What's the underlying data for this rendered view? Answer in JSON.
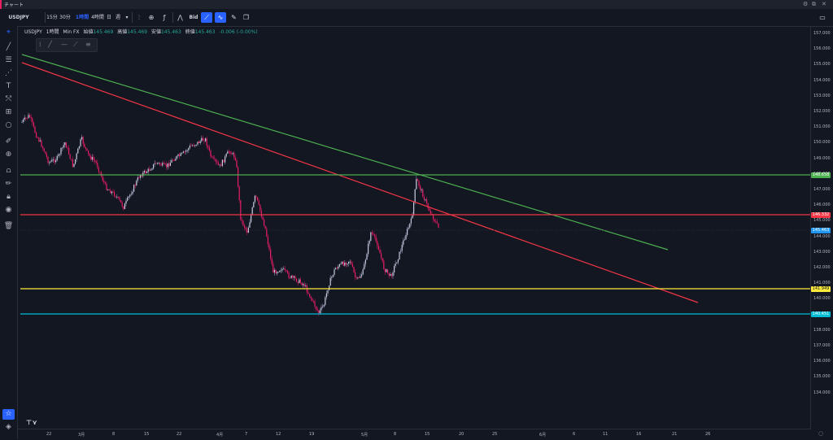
{
  "window": {
    "title": "チャート"
  },
  "toolbar": {
    "symbol": "USDJPY",
    "intervals": [
      "15分",
      "30分",
      "1時間",
      "4時間",
      "日",
      "週"
    ],
    "active_interval": "1時間",
    "bid_label": "Bid"
  },
  "legend": {
    "symbol": "USDJPY",
    "interval": "1時間",
    "source": "Min FX",
    "open_label": "始値",
    "open": "145.469",
    "high_label": "高値",
    "high": "145.469",
    "low_label": "安値",
    "low": "145.463",
    "close_label": "終値",
    "close": "145.463",
    "change": "-0.006 (-0.00%)"
  },
  "price_axis": [
    "157.000",
    "156.000",
    "155.000",
    "154.000",
    "153.000",
    "152.000",
    "151.000",
    "150.000",
    "149.000",
    "148.000",
    "147.000",
    "146.000",
    "145.000",
    "144.000",
    "143.000",
    "142.000",
    "141.000",
    "140.000",
    "139.000",
    "138.000",
    "137.000",
    "136.000",
    "135.000",
    "134.000"
  ],
  "price_labels": [
    {
      "value": "148.658",
      "color": "#4caf50"
    },
    {
      "value": "146.332",
      "color": "#f23645"
    },
    {
      "value": "145.463",
      "color": "#2196f3"
    },
    {
      "value": "141.949",
      "color": "#ffeb3b"
    },
    {
      "value": "140.451",
      "color": "#00bcd4"
    }
  ],
  "time_axis": [
    "22",
    "3月",
    "8",
    "15",
    "22",
    "4月",
    "7",
    "12",
    "19",
    "5月",
    "8",
    "15",
    "20",
    "25",
    "6月",
    "6",
    "11",
    "16",
    "21",
    "26"
  ],
  "colors": {
    "background": "#131722",
    "green": "#4caf50",
    "red": "#f23645",
    "yellow": "#ffeb3b",
    "cyan": "#00bcd4",
    "up": "#26a69a",
    "down": "#ef5350"
  }
}
